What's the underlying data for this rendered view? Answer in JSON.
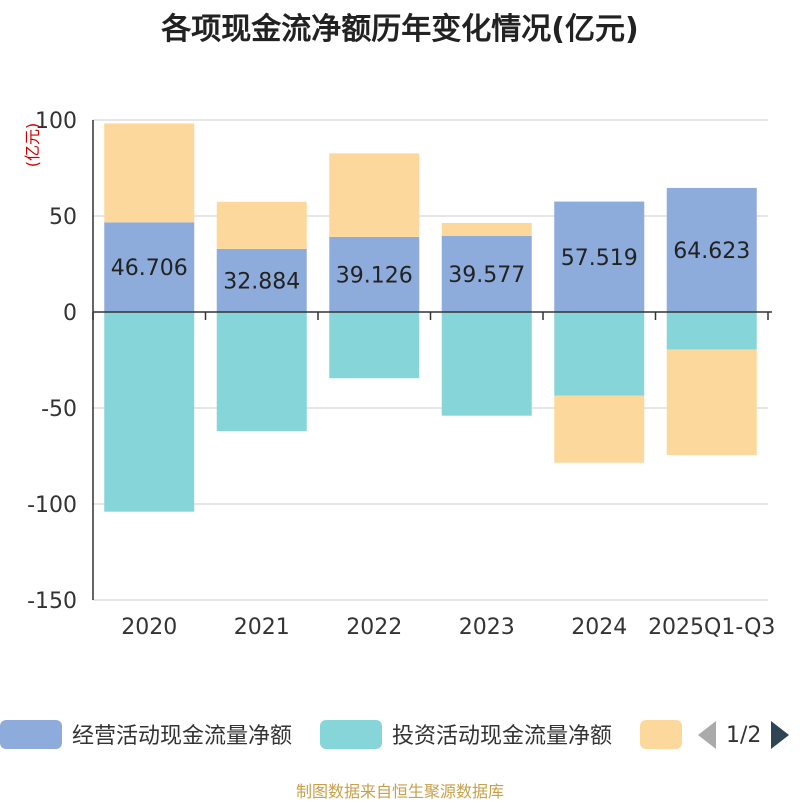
{
  "title": "各项现金流净额历年变化情况(亿元)",
  "source": "制图数据来自恒生聚源数据库",
  "legend_page": "1/2",
  "colors": {
    "operating": "#8eacdb",
    "investing": "#86d5d8",
    "financing": "#fdd89c",
    "axis": "#333333",
    "grid": "#cccccc",
    "unit": "#cc0000"
  },
  "legend": [
    {
      "name": "经营活动现金流量净额",
      "color": "#8eacdb"
    },
    {
      "name": "投资活动现金流量净额",
      "color": "#86d5d8"
    },
    {
      "name": "",
      "color": "#fdd89c"
    }
  ],
  "chart_data": {
    "type": "bar",
    "stacked": true,
    "title": "各项现金流净额历年变化情况(亿元)",
    "ylabel": "(亿元)",
    "ylim": [
      -150,
      100
    ],
    "yticks": [
      100,
      50,
      0,
      -50,
      -100,
      -150
    ],
    "categories": [
      "2020",
      "2021",
      "2022",
      "2023",
      "2024",
      "2025Q1-Q3"
    ],
    "series": [
      {
        "name": "经营活动现金流量净额",
        "values": [
          46.706,
          32.884,
          39.126,
          39.577,
          57.519,
          64.623
        ],
        "labels": [
          "46.706",
          "32.884",
          "39.126",
          "39.577",
          "57.519",
          "64.623"
        ]
      },
      {
        "name": "投资活动现金流量净额",
        "values": [
          -104,
          -62,
          -34.5,
          -54,
          -43.5,
          -19.5
        ]
      },
      {
        "name": "",
        "values": [
          51.5,
          24.5,
          43.5,
          6.8,
          -35,
          -55
        ]
      }
    ]
  }
}
